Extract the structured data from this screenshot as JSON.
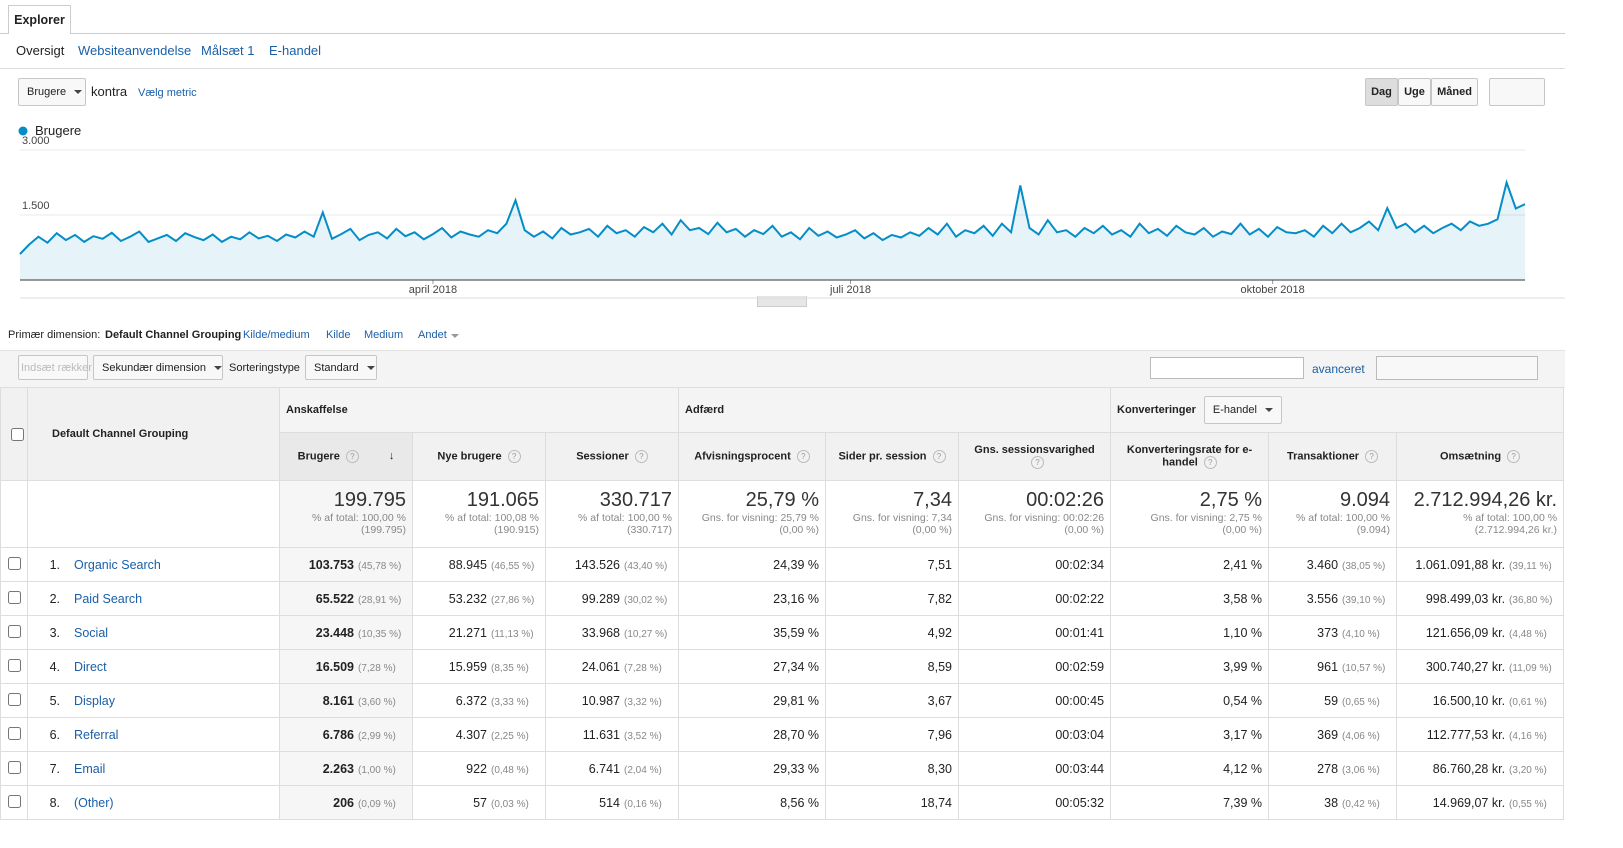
{
  "tab": "Explorer",
  "subnav": [
    "Oversigt",
    "Websiteanvendelse",
    "Målsæt 1",
    "E-handel"
  ],
  "metric": {
    "selected": "Brugere",
    "versus": "kontra",
    "choose": "Vælg metric"
  },
  "period_buttons": [
    "Dag",
    "Uge",
    "Måned"
  ],
  "chart_data": {
    "type": "line",
    "series": [
      {
        "name": "Brugere",
        "color": "#058dc7",
        "values": [
          600,
          820,
          1000,
          860,
          1080,
          920,
          1040,
          880,
          1010,
          950,
          1090,
          900,
          1000,
          1120,
          880,
          960,
          1040,
          900,
          1080,
          990,
          920,
          1050,
          880,
          1000,
          940,
          1100,
          960,
          1020,
          900,
          1050,
          980,
          1120,
          1000,
          1560,
          950,
          1060,
          1180,
          920,
          1040,
          1100,
          960,
          1180,
          1010,
          1100,
          940,
          1060,
          1200,
          980,
          1120,
          1050,
          1000,
          1150,
          1080,
          1300,
          1840,
          1150,
          1000,
          1120,
          960,
          1200,
          1050,
          1100,
          1180,
          1000,
          1250,
          1080,
          1150,
          1000,
          1220,
          1100,
          1300,
          1050,
          1380,
          1150,
          1200,
          1060,
          1320,
          1100,
          1180,
          1000,
          1150,
          1060,
          1250,
          1000,
          1100,
          940,
          1200,
          1020,
          1120,
          980,
          1050,
          1150,
          960,
          1080,
          920,
          1040,
          980,
          1100,
          1020,
          1200,
          1050,
          1300,
          1000,
          1150,
          1080,
          1250,
          1020,
          1300,
          1100,
          2180,
          1200,
          1050,
          1380,
          1100,
          1150,
          1000,
          1200,
          1080,
          1250,
          1050,
          1150,
          1000,
          1300,
          1080,
          1180,
          1020,
          1250,
          1100,
          1050,
          1200,
          1000,
          1120,
          1060,
          1300,
          1050,
          1180,
          1000,
          1220,
          1100,
          1080,
          1150,
          1000,
          1250,
          1080,
          1300,
          1100,
          1200,
          1350,
          1150,
          1660,
          1200,
          1300,
          1100,
          1250,
          1080,
          1200,
          1300,
          1150,
          1350,
          1250,
          1300,
          1400,
          2250,
          1650,
          1750
        ]
      }
    ],
    "xlim": [
      0,
      164
    ],
    "xticks": [
      {
        "value": 45,
        "label": "april 2018"
      },
      {
        "value": 90.5,
        "label": "juli 2018"
      },
      {
        "value": 136.5,
        "label": "oktober 2018"
      }
    ],
    "ylim": [
      0,
      3000
    ],
    "yticks": [
      {
        "value": 1500,
        "label": "1.500"
      },
      {
        "value": 3000,
        "label": "3.000"
      }
    ],
    "grid": true
  },
  "dimension_bar": {
    "label": "Primær dimension:",
    "options": [
      "Default Channel Grouping",
      "Kilde/medium",
      "Kilde",
      "Medium",
      "Andet"
    ]
  },
  "toolbar": {
    "insert_rows": "Indsæt rækker",
    "secondary": "Sekundær dimension",
    "sort_label": "Sorteringstype",
    "sort_value": "Standard",
    "advanced": "avanceret"
  },
  "table": {
    "dimension_header": "Default Channel Grouping",
    "groups": [
      {
        "label": "Anskaffelse"
      },
      {
        "label": "Adfærd"
      },
      {
        "label": "Konverteringer",
        "select": "E-handel"
      }
    ],
    "columns": [
      "Brugere",
      "Nye brugere",
      "Sessioner",
      "Afvisningsprocent",
      "Sider pr. session",
      "Gns. sessionsvarighed",
      "Konverteringsrate for e-handel",
      "Transaktioner",
      "Omsætning"
    ],
    "totals": [
      {
        "value": "199.795",
        "note": "% af total: 100,00 %",
        "base": "(199.795)"
      },
      {
        "value": "191.065",
        "note": "% af total: 100,08 %",
        "base": "(190.915)"
      },
      {
        "value": "330.717",
        "note": "% af total: 100,00 %",
        "base": "(330.717)"
      },
      {
        "value": "25,79 %",
        "note": "Gns. for visning: 25,79 %",
        "base": "(0,00 %)"
      },
      {
        "value": "7,34",
        "note": "Gns. for visning: 7,34",
        "base": "(0,00 %)"
      },
      {
        "value": "00:02:26",
        "note": "Gns. for visning: 00:02:26",
        "base": "(0,00 %)"
      },
      {
        "value": "2,75 %",
        "note": "Gns. for visning: 2,75 %",
        "base": "(0,00 %)"
      },
      {
        "value": "9.094",
        "note": "% af total: 100,00 %",
        "base": "(9.094)"
      },
      {
        "value": "2.712.994,26 kr.",
        "note": "% af total: 100,00 %",
        "base": "(2.712.994,26 kr.)"
      }
    ],
    "rows": [
      {
        "rank": "1.",
        "name": "Organic Search",
        "cells": [
          {
            "value": "103.753",
            "pct": "(45,78 %)"
          },
          {
            "value": "88.945",
            "pct": "(46,55 %)"
          },
          {
            "value": "143.526",
            "pct": "(43,40 %)"
          },
          {
            "value": "24,39 %"
          },
          {
            "value": "7,51"
          },
          {
            "value": "00:02:34"
          },
          {
            "value": "2,41 %"
          },
          {
            "value": "3.460",
            "pct": "(38,05 %)"
          },
          {
            "value": "1.061.091,88 kr.",
            "pct": "(39,11 %)"
          }
        ]
      },
      {
        "rank": "2.",
        "name": "Paid Search",
        "cells": [
          {
            "value": "65.522",
            "pct": "(28,91 %)"
          },
          {
            "value": "53.232",
            "pct": "(27,86 %)"
          },
          {
            "value": "99.289",
            "pct": "(30,02 %)"
          },
          {
            "value": "23,16 %"
          },
          {
            "value": "7,82"
          },
          {
            "value": "00:02:22"
          },
          {
            "value": "3,58 %"
          },
          {
            "value": "3.556",
            "pct": "(39,10 %)"
          },
          {
            "value": "998.499,03 kr.",
            "pct": "(36,80 %)"
          }
        ]
      },
      {
        "rank": "3.",
        "name": "Social",
        "cells": [
          {
            "value": "23.448",
            "pct": "(10,35 %)"
          },
          {
            "value": "21.271",
            "pct": "(11,13 %)"
          },
          {
            "value": "33.968",
            "pct": "(10,27 %)"
          },
          {
            "value": "35,59 %"
          },
          {
            "value": "4,92"
          },
          {
            "value": "00:01:41"
          },
          {
            "value": "1,10 %"
          },
          {
            "value": "373",
            "pct": "(4,10 %)"
          },
          {
            "value": "121.656,09 kr.",
            "pct": "(4,48 %)"
          }
        ]
      },
      {
        "rank": "4.",
        "name": "Direct",
        "cells": [
          {
            "value": "16.509",
            "pct": "(7,28 %)"
          },
          {
            "value": "15.959",
            "pct": "(8,35 %)"
          },
          {
            "value": "24.061",
            "pct": "(7,28 %)"
          },
          {
            "value": "27,34 %"
          },
          {
            "value": "8,59"
          },
          {
            "value": "00:02:59"
          },
          {
            "value": "3,99 %"
          },
          {
            "value": "961",
            "pct": "(10,57 %)"
          },
          {
            "value": "300.740,27 kr.",
            "pct": "(11,09 %)"
          }
        ]
      },
      {
        "rank": "5.",
        "name": "Display",
        "cells": [
          {
            "value": "8.161",
            "pct": "(3,60 %)"
          },
          {
            "value": "6.372",
            "pct": "(3,33 %)"
          },
          {
            "value": "10.987",
            "pct": "(3,32 %)"
          },
          {
            "value": "29,81 %"
          },
          {
            "value": "3,67"
          },
          {
            "value": "00:00:45"
          },
          {
            "value": "0,54 %"
          },
          {
            "value": "59",
            "pct": "(0,65 %)"
          },
          {
            "value": "16.500,10 kr.",
            "pct": "(0,61 %)"
          }
        ]
      },
      {
        "rank": "6.",
        "name": "Referral",
        "cells": [
          {
            "value": "6.786",
            "pct": "(2,99 %)"
          },
          {
            "value": "4.307",
            "pct": "(2,25 %)"
          },
          {
            "value": "11.631",
            "pct": "(3,52 %)"
          },
          {
            "value": "28,70 %"
          },
          {
            "value": "7,96"
          },
          {
            "value": "00:03:04"
          },
          {
            "value": "3,17 %"
          },
          {
            "value": "369",
            "pct": "(4,06 %)"
          },
          {
            "value": "112.777,53 kr.",
            "pct": "(4,16 %)"
          }
        ]
      },
      {
        "rank": "7.",
        "name": "Email",
        "cells": [
          {
            "value": "2.263",
            "pct": "(1,00 %)"
          },
          {
            "value": "922",
            "pct": "(0,48 %)"
          },
          {
            "value": "6.741",
            "pct": "(2,04 %)"
          },
          {
            "value": "29,33 %"
          },
          {
            "value": "8,30"
          },
          {
            "value": "00:03:44"
          },
          {
            "value": "4,12 %"
          },
          {
            "value": "278",
            "pct": "(3,06 %)"
          },
          {
            "value": "86.760,28 kr.",
            "pct": "(3,20 %)"
          }
        ]
      },
      {
        "rank": "8.",
        "name": "(Other)",
        "cells": [
          {
            "value": "206",
            "pct": "(0,09 %)"
          },
          {
            "value": "57",
            "pct": "(0,03 %)"
          },
          {
            "value": "514",
            "pct": "(0,16 %)"
          },
          {
            "value": "8,56 %"
          },
          {
            "value": "18,74"
          },
          {
            "value": "00:05:32"
          },
          {
            "value": "7,39 %"
          },
          {
            "value": "38",
            "pct": "(0,42 %)"
          },
          {
            "value": "14.969,07 kr.",
            "pct": "(0,55 %)"
          }
        ]
      }
    ]
  }
}
